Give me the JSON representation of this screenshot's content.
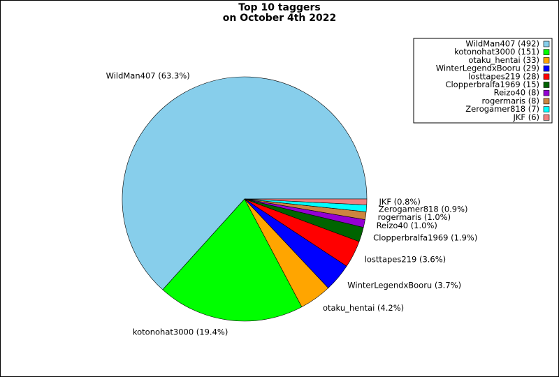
{
  "chart_data": {
    "type": "pie",
    "title": "Top 10 taggers",
    "subtitle": "on October 4th 2022",
    "categories": [
      "WildMan407",
      "kotonohat3000",
      "otaku_hentai",
      "WinterLegendxBooru",
      "losttapes219",
      "Clopperbralfa1969",
      "Reizo40",
      "rogermaris",
      "Zerogamer818",
      "JKF"
    ],
    "values": [
      492,
      151,
      33,
      29,
      28,
      15,
      8,
      8,
      7,
      6
    ],
    "slice_labels": [
      "WildMan407 (63.3%)",
      "kotonohat3000 (19.4%)",
      "otaku_hentai (4.2%)",
      "WinterLegendxBooru (3.7%)",
      "losttapes219 (3.6%)",
      "Clopperbralfa1969 (1.9%)",
      "Reizo40 (1.0%)",
      "rogermaris (1.0%)",
      "Zerogamer818 (0.9%)",
      "JKF (0.8%)"
    ],
    "legend_labels": [
      "WildMan407 (492)",
      "kotonohat3000 (151)",
      "otaku_hentai (33)",
      "WinterLegendxBooru (29)",
      "losttapes219 (28)",
      "Clopperbralfa1969 (15)",
      "Reizo40 (8)",
      "rogermaris (8)",
      "Zerogamer818 (7)",
      "JKF (6)"
    ],
    "colors": [
      "#87ceeb",
      "#00ff00",
      "#ffa500",
      "#0000ff",
      "#ff0000",
      "#006400",
      "#9400d3",
      "#cd853f",
      "#00ffff",
      "#f08080"
    ],
    "legend": "upper right"
  }
}
